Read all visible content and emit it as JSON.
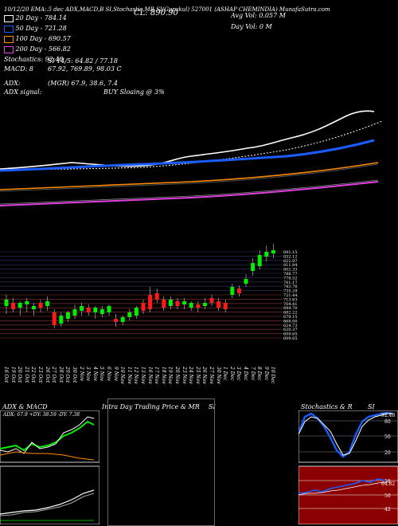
{
  "header": {
    "top_line": "10/12/20 EMA:.5 dec ADX,MACD,B SI,Stochastic,MR SI(Gurukul) 527001 (ASHAP CHEMINDIA) MunafaSutra.com",
    "close_label": "CL: 890.90",
    "avg_vol": "Avg Vol: 0.057 M",
    "day_vol": "Day Vol: 0   M"
  },
  "ma": {
    "ma20": "20   Day - 784.14",
    "ma50": "50   Day - 721.28",
    "ma100": "100  Day - 690.57",
    "ma200": "200  Day - 566.82"
  },
  "indicators": {
    "stochastics": "Stochastics: 92.48",
    "macd": "MACD: 8",
    "si_line": "SI 14/5: 64.82 / 77.18",
    "macd_vals": "67.92, 769.89, 98.03 C",
    "adx_label": "ADX:",
    "adx_signal": "ADX  signal:",
    "adx_vals": "(MGR) 67.9, 38.6, 7.4",
    "buy_signal": "BUY Sloaing @ 3%"
  },
  "price_levels": [
    "891.15",
    "832.12",
    "822.97",
    "811.84",
    "802.33",
    "788.77",
    "778.52",
    "761.17",
    "743.76",
    "735.29",
    "721.44",
    "713.63",
    "704.41",
    "694.70",
    "682.22",
    "679.15",
    "668.00",
    "624.73",
    "620.37",
    "609.65",
    "609.65"
  ],
  "dates": [
    "16 Oct",
    "19 Oct",
    "20 Oct",
    "21 Oct",
    "22 Oct",
    "23 Oct",
    "26 Oct",
    "27 Oct",
    "28 Oct",
    "29 Oct",
    "30 Oct",
    "2 Nov",
    "3 Nov",
    "4 Nov",
    "5 Nov",
    "6 Nov",
    "9 Nov",
    "10 Nov",
    "11 Nov",
    "12 Nov",
    "13 Nov",
    "16 Nov",
    "17 Nov",
    "18 Nov",
    "19 Nov",
    "20 Nov",
    "23 Nov",
    "24 Nov",
    "25 Nov",
    "26 Nov",
    "27 Nov",
    "30 Nov",
    "1 Dec",
    "2 Dec",
    "3 Dec",
    "4 Dec",
    "7 Dec",
    "8 Dec",
    "9 Dec",
    "10 Dec"
  ],
  "panels": {
    "adx_title": "ADX  & MACD",
    "adx_readout": "ADX: 67.9  +DY: 38.59  -DY: 7.38",
    "intraday_title": "Intra Day Trading Price  & MR",
    "intraday_si": "SI",
    "stoch_title": "Stochastics & R",
    "stoch_si": "SI",
    "stoch_levels": [
      "80",
      "50",
      "20"
    ],
    "si_levels": [
      "58",
      "50",
      "42"
    ],
    "stoch_value": "92.48",
    "si_value": "64.82"
  },
  "colors": {
    "background": "#000000",
    "ma20": "#ffffff",
    "ma50": "#1a5cff",
    "ma100": "#ff8c00",
    "ma200": "#e040e0",
    "bull": "#00ee00",
    "bear": "#ff1a1a",
    "si_panel": "#8b0000"
  }
}
